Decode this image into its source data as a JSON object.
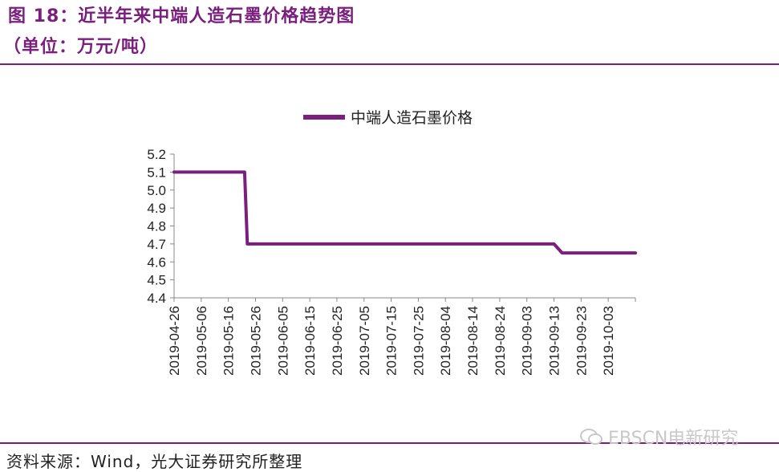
{
  "figure": {
    "title": "图 18：近半年来中端人造石墨价格趋势图",
    "subtitle": "（单位：万元/吨）",
    "source": "资料来源：Wind，光大证券研究所整理",
    "watermark": "EBSCN电新研究",
    "accent_color": "#7a1f7e",
    "watermark_icon": "wechat-icon"
  },
  "chart_data": {
    "type": "line",
    "title": "",
    "xlabel": "",
    "ylabel": "",
    "ylim": [
      4.4,
      5.2
    ],
    "yticks": [
      "5.2",
      "5.1",
      "5.0",
      "4.9",
      "4.8",
      "4.7",
      "4.6",
      "4.5",
      "4.4"
    ],
    "xticks": [
      "2019-04-26",
      "2019-05-06",
      "2019-05-16",
      "2019-05-26",
      "2019-06-05",
      "2019-06-15",
      "2019-06-25",
      "2019-07-05",
      "2019-07-15",
      "2019-07-25",
      "2019-08-04",
      "2019-08-14",
      "2019-08-24",
      "2019-09-03",
      "2019-09-13",
      "2019-09-23",
      "2019-10-03"
    ],
    "x_start": "2019-04-26",
    "x_end": "2019-10-13",
    "legend_position": "top-center",
    "grid": false,
    "series": [
      {
        "name": "中端人造石墨价格",
        "color": "#7a1f7e",
        "points": [
          [
            "2019-04-26",
            5.1
          ],
          [
            "2019-05-22",
            5.1
          ],
          [
            "2019-05-23",
            4.7
          ],
          [
            "2019-09-13",
            4.7
          ],
          [
            "2019-09-16",
            4.65
          ],
          [
            "2019-10-13",
            4.65
          ]
        ]
      }
    ]
  }
}
